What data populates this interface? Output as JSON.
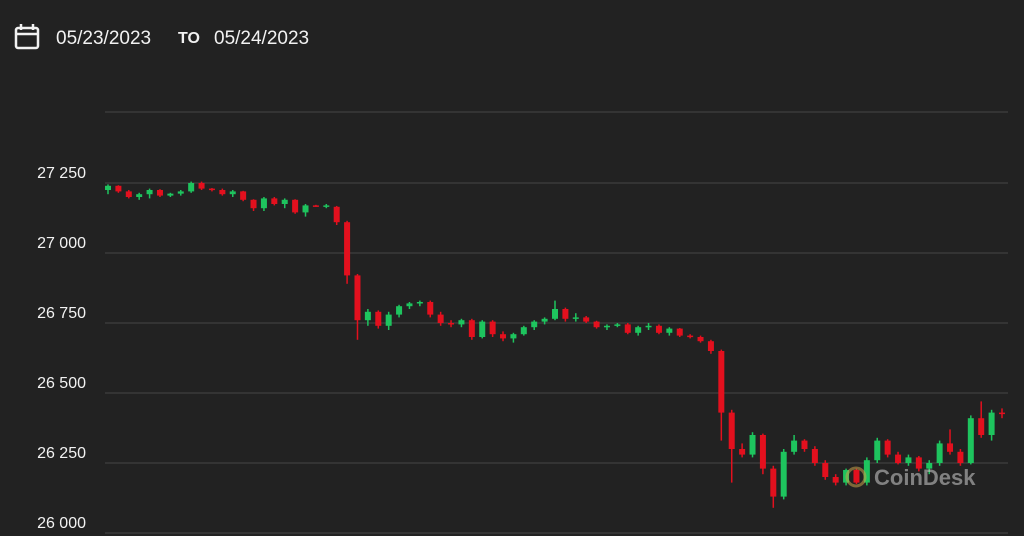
{
  "header": {
    "from": "05/23/2023",
    "to_word": "TO",
    "to": "05/24/2023"
  },
  "watermark": "CoinDesk",
  "chart_data": {
    "type": "candlestick",
    "up_color": "#1ec45e",
    "down_color": "#e3101e",
    "ylim": [
      26000,
      27500
    ],
    "yticks": [
      {
        "value": 26000,
        "label": "26 000"
      },
      {
        "value": 26250,
        "label": "26 250"
      },
      {
        "value": 26500,
        "label": "26 500"
      },
      {
        "value": 26750,
        "label": "26 750"
      },
      {
        "value": 27000,
        "label": "27 000"
      },
      {
        "value": 27250,
        "label": "27 250"
      }
    ],
    "grid": true,
    "open": [
      27225,
      27240,
      27220,
      27200,
      27210,
      27225,
      27205,
      27212,
      27220,
      27250,
      27230,
      27225,
      27210,
      27220,
      27190,
      27160,
      27195,
      27175,
      27190,
      27145,
      27170,
      27168,
      27165,
      27110,
      26920,
      26760,
      26790,
      26740,
      26780,
      26810,
      26820,
      26825,
      26780,
      26750,
      26745,
      26760,
      26700,
      26755,
      26710,
      26695,
      26710,
      26735,
      26755,
      26765,
      26800,
      26765,
      26770,
      26755,
      26735,
      26740,
      26745,
      26715,
      26735,
      26740,
      26715,
      26730,
      26705,
      26700,
      26685,
      26650,
      26430,
      26300,
      26280,
      26350,
      26230,
      26130,
      26290,
      26330,
      26300,
      26250,
      26200,
      26180,
      26225,
      26180,
      26260,
      26330,
      26280,
      26250,
      26270,
      26230,
      26250,
      26320,
      26290,
      26250,
      26410,
      26350,
      26430
    ],
    "high": [
      27245,
      27242,
      27225,
      27215,
      27230,
      27228,
      27215,
      27225,
      27255,
      27255,
      27232,
      27230,
      27225,
      27222,
      27192,
      27200,
      27200,
      27195,
      27192,
      27175,
      27172,
      27175,
      27168,
      27115,
      26925,
      26800,
      26795,
      26790,
      26815,
      26825,
      26830,
      26830,
      26790,
      26760,
      26765,
      26765,
      26760,
      26760,
      26720,
      26715,
      26740,
      26760,
      26770,
      26830,
      26805,
      26785,
      26775,
      26758,
      26745,
      26750,
      26750,
      26740,
      26750,
      26745,
      26735,
      26732,
      26710,
      26705,
      26690,
      26655,
      26440,
      26320,
      26360,
      26355,
      26240,
      26300,
      26350,
      26335,
      26310,
      26260,
      26210,
      26230,
      26230,
      26270,
      26340,
      26335,
      26290,
      26280,
      26275,
      26260,
      26330,
      26370,
      26300,
      26420,
      26470,
      26440,
      26445
    ],
    "low": [
      27210,
      27215,
      27195,
      27190,
      27195,
      27200,
      27200,
      27205,
      27215,
      27225,
      27220,
      27205,
      27200,
      27185,
      27150,
      27150,
      27170,
      27160,
      27140,
      27130,
      27165,
      27160,
      27100,
      26890,
      26690,
      26740,
      26730,
      26725,
      26770,
      26800,
      26810,
      26770,
      26740,
      26735,
      26735,
      26690,
      26695,
      26700,
      26685,
      26680,
      26705,
      26725,
      26745,
      26760,
      26755,
      26755,
      26750,
      26730,
      26725,
      26735,
      26710,
      26705,
      26725,
      26710,
      26705,
      26700,
      26695,
      26680,
      26640,
      26330,
      26180,
      26270,
      26270,
      26210,
      26090,
      26120,
      26280,
      26290,
      26240,
      26190,
      26170,
      26170,
      26175,
      26170,
      26250,
      26270,
      26245,
      26240,
      26220,
      26210,
      26240,
      26280,
      26240,
      26245,
      26340,
      26330,
      26410
    ],
    "close": [
      27240,
      27220,
      27200,
      27210,
      27225,
      27205,
      27212,
      27220,
      27250,
      27230,
      27225,
      27210,
      27220,
      27190,
      27160,
      27195,
      27175,
      27190,
      27145,
      27170,
      27168,
      27170,
      27110,
      26920,
      26760,
      26790,
      26740,
      26780,
      26810,
      26820,
      26825,
      26780,
      26750,
      26745,
      26760,
      26700,
      26755,
      26710,
      26695,
      26710,
      26735,
      26755,
      26765,
      26800,
      26765,
      26770,
      26755,
      26735,
      26740,
      26745,
      26715,
      26735,
      26740,
      26715,
      26730,
      26705,
      26700,
      26685,
      26650,
      26430,
      26300,
      26280,
      26350,
      26230,
      26130,
      26290,
      26330,
      26300,
      26250,
      26200,
      26180,
      26225,
      26180,
      26260,
      26330,
      26280,
      26250,
      26270,
      26230,
      26250,
      26320,
      26290,
      26250,
      26410,
      26350,
      26430,
      26425
    ]
  }
}
